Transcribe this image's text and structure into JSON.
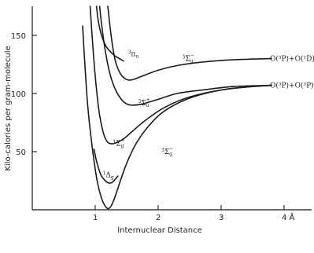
{
  "chart_data": {
    "type": "line",
    "xlabel": "Internuclear Distance",
    "ylabel": "Kilo-calories per gram-molecule",
    "xlim": [
      0,
      4
    ],
    "ylim": [
      0,
      175
    ],
    "xticks": [
      1,
      2,
      3,
      4
    ],
    "xtick_labels": [
      "1",
      "2",
      "3",
      "4  Å"
    ],
    "yticks": [
      50,
      100,
      150
    ],
    "ytick_labels": [
      "50",
      "100",
      "150"
    ],
    "grid": false,
    "asymptote_labels": [
      {
        "text": "O(³P)+O(¹D)",
        "y": 130
      },
      {
        "text": "O(³P)+O(³P)",
        "y": 107
      }
    ],
    "series": [
      {
        "name": "³Σu⁻",
        "label_parts": [
          "3",
          "Σ",
          "u",
          "−"
        ],
        "label_at": [
          2.38,
          128
        ],
        "x": [
          1.2,
          1.23,
          1.27,
          1.32,
          1.4,
          1.5,
          1.6,
          1.75,
          2.0,
          2.3,
          2.7,
          3.2,
          3.8
        ],
        "y": [
          175,
          160,
          143,
          128,
          117,
          112,
          112,
          115,
          120,
          124,
          127,
          129,
          130
        ]
      },
      {
        "name": "³Πu",
        "label_parts": [
          "3",
          "π",
          "u",
          ""
        ],
        "label_at": [
          1.52,
          132
        ],
        "x": [
          1.02,
          1.05,
          1.1,
          1.18,
          1.3,
          1.45
        ],
        "y": [
          175,
          162,
          150,
          140,
          133,
          128
        ]
      },
      {
        "name": "³Σu⁺",
        "label_parts": [
          "3",
          "Σ",
          "u",
          "+"
        ],
        "label_at": [
          1.68,
          90
        ],
        "x": [
          1.07,
          1.1,
          1.15,
          1.22,
          1.3,
          1.4,
          1.5,
          1.6,
          1.75,
          2.0,
          2.3,
          2.7,
          3.2,
          3.8
        ],
        "y": [
          175,
          160,
          140,
          120,
          106,
          96,
          91,
          90,
          91,
          95,
          100,
          103,
          106,
          107
        ]
      },
      {
        "name": "¹Σg⁺",
        "label_parts": [
          "1",
          "Σ",
          "g",
          "+"
        ],
        "label_at": [
          1.28,
          55
        ],
        "x": [
          0.92,
          0.95,
          1.0,
          1.06,
          1.13,
          1.2,
          1.3,
          1.45,
          1.6,
          1.8,
          2.1,
          2.5,
          3.0,
          3.5,
          3.8
        ],
        "y": [
          175,
          150,
          115,
          85,
          66,
          58,
          57,
          61,
          68,
          77,
          88,
          97,
          103,
          106,
          107
        ]
      },
      {
        "name": "³Σg⁻",
        "label_parts": [
          "3",
          "Σ",
          "g",
          "−"
        ],
        "label_at": [
          2.05,
          48
        ],
        "x": [
          0.8,
          0.83,
          0.88,
          0.95,
          1.03,
          1.1,
          1.16,
          1.21,
          1.26,
          1.32,
          1.4,
          1.5,
          1.65,
          1.85,
          2.1,
          2.5,
          3.0,
          3.5,
          3.8
        ],
        "y": [
          158,
          130,
          90,
          55,
          25,
          10,
          3,
          1,
          4,
          12,
          25,
          40,
          57,
          72,
          85,
          96,
          103,
          106,
          107
        ]
      },
      {
        "name": "¹Δg",
        "label_parts": [
          "1",
          "Δ",
          "g",
          ""
        ],
        "label_at": [
          1.12,
          28
        ],
        "x": [
          0.98,
          1.03,
          1.09,
          1.16,
          1.22,
          1.28,
          1.36
        ],
        "y": [
          52,
          40,
          30,
          25,
          23,
          24,
          29
        ]
      }
    ]
  }
}
